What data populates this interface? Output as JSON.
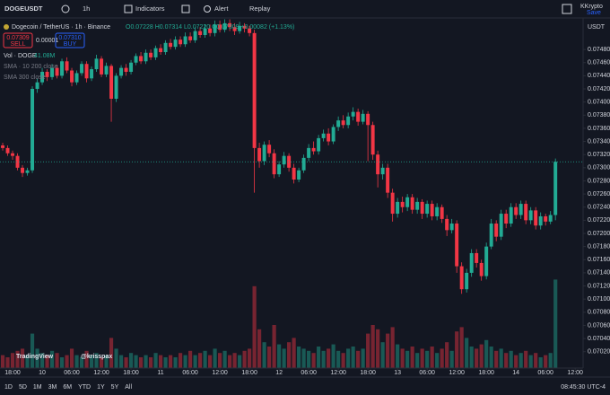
{
  "toolbar": {
    "symbol": "DOGEUSDT",
    "interval": "1h",
    "indicators": "Indicators",
    "alert": "Alert",
    "replay": "Replay",
    "user": "KKrypto",
    "save": "Save"
  },
  "legend": {
    "title": "Dogecoin / TetherUS · 1h · Binance",
    "ohlc": "O0.07228 H0.07314 L0.07220 C0.07309 +0.00082 (+1.13%)",
    "sell_price": "0.07309",
    "sell": "SELL",
    "spread": "0.00001",
    "buy_price": "0.07310",
    "buy": "BUY",
    "volume": "Vol · DOGE",
    "volume_value": "41.08M",
    "sma1": "SMA · 10 200 close",
    "sma2": "SMA 300 close"
  },
  "watermark": {
    "brand": "TradingView",
    "author": "@krisspax"
  },
  "bottom_bar": {
    "ranges": [
      "1D",
      "5D",
      "1M",
      "3M",
      "6M",
      "YTD",
      "1Y",
      "5Y",
      "All"
    ],
    "clock": "08:45:30 UTC-4"
  },
  "chart_data": {
    "type": "candlestick",
    "currency": "USDT",
    "up_color": "#22ab94",
    "down_color": "#f23645",
    "open": [
      0.07334,
      0.0733,
      0.07322,
      0.07318,
      0.073,
      0.07292,
      0.07296,
      0.0742,
      0.0743,
      0.07446,
      0.07438,
      0.07452,
      0.0744,
      0.07462,
      0.07448,
      0.0743,
      0.07444,
      0.07458,
      0.07436,
      0.0745,
      0.07466,
      0.07442,
      0.07455,
      0.07405,
      0.0744,
      0.07452,
      0.07446,
      0.0746,
      0.0747,
      0.07462,
      0.07475,
      0.07468,
      0.07482,
      0.07476,
      0.0749,
      0.07484,
      0.07495,
      0.07488,
      0.075,
      0.07494,
      0.07508,
      0.07502,
      0.07512,
      0.07505,
      0.07518,
      0.0751,
      0.0752,
      0.07514,
      0.07508,
      0.07516,
      0.07512,
      0.07505,
      0.0733,
      0.0731,
      0.07335,
      0.07322,
      0.0729,
      0.07305,
      0.07318,
      0.073,
      0.07282,
      0.07296,
      0.07315,
      0.0733,
      0.07325,
      0.07345,
      0.07352,
      0.0734,
      0.07362,
      0.07372,
      0.07365,
      0.07378,
      0.07385,
      0.0737,
      0.07382,
      0.07365,
      0.0732,
      0.0729,
      0.073,
      0.07262,
      0.0723,
      0.07248,
      0.0724,
      0.07255,
      0.07236,
      0.07248,
      0.0723,
      0.07245,
      0.07226,
      0.0724,
      0.07222,
      0.07205,
      0.07215,
      0.0715,
      0.07115,
      0.0714,
      0.0717,
      0.07155,
      0.07135,
      0.0718,
      0.07215,
      0.07195,
      0.0723,
      0.07215,
      0.0724,
      0.07228,
      0.07245,
      0.0722,
      0.07235,
      0.07212,
      0.07226,
      0.07218,
      0.07228
    ],
    "high": [
      0.07338,
      0.07334,
      0.07326,
      0.07322,
      0.07304,
      0.073,
      0.07424,
      0.07436,
      0.07452,
      0.0745,
      0.07458,
      0.07456,
      0.07466,
      0.07468,
      0.07452,
      0.07448,
      0.07462,
      0.07462,
      0.07454,
      0.07472,
      0.0747,
      0.0746,
      0.07458,
      0.07444,
      0.07456,
      0.07458,
      0.07464,
      0.07474,
      0.07476,
      0.0748,
      0.0748,
      0.07486,
      0.07488,
      0.07494,
      0.07496,
      0.075,
      0.075,
      0.07506,
      0.07506,
      0.07514,
      0.07514,
      0.07518,
      0.07518,
      0.07524,
      0.07524,
      0.07526,
      0.07526,
      0.0752,
      0.07522,
      0.0752,
      0.07516,
      0.0751,
      0.07338,
      0.0734,
      0.07342,
      0.07328,
      0.0731,
      0.07324,
      0.07322,
      0.07306,
      0.073,
      0.0732,
      0.07336,
      0.0734,
      0.0735,
      0.07358,
      0.0736,
      0.07366,
      0.07378,
      0.0738,
      0.07384,
      0.07392,
      0.0739,
      0.07388,
      0.07386,
      0.0737,
      0.07326,
      0.07306,
      0.07306,
      0.07268,
      0.07254,
      0.07256,
      0.0726,
      0.0726,
      0.07254,
      0.07252,
      0.0725,
      0.0725,
      0.07246,
      0.07244,
      0.07228,
      0.07222,
      0.0722,
      0.07156,
      0.07146,
      0.07176,
      0.07176,
      0.0716,
      0.07186,
      0.07222,
      0.0722,
      0.07236,
      0.07236,
      0.07246,
      0.07246,
      0.0725,
      0.0725,
      0.0724,
      0.0724,
      0.07232,
      0.0723,
      0.07234,
      0.07314
    ],
    "low": [
      0.07326,
      0.07318,
      0.07312,
      0.07296,
      0.07286,
      0.07288,
      0.07292,
      0.07414,
      0.07426,
      0.07432,
      0.07434,
      0.07436,
      0.07436,
      0.07444,
      0.07424,
      0.07426,
      0.0744,
      0.0743,
      0.07432,
      0.07446,
      0.07438,
      0.07438,
      0.0737,
      0.074,
      0.07436,
      0.0744,
      0.07442,
      0.07456,
      0.07458,
      0.07458,
      0.07464,
      0.07464,
      0.07472,
      0.07472,
      0.0748,
      0.0748,
      0.07484,
      0.07484,
      0.0749,
      0.0749,
      0.07498,
      0.07498,
      0.075,
      0.075,
      0.07506,
      0.07506,
      0.07508,
      0.07502,
      0.07504,
      0.07506,
      0.075,
      0.07262,
      0.073,
      0.07304,
      0.07316,
      0.07284,
      0.07286,
      0.073,
      0.07294,
      0.07276,
      0.07278,
      0.07292,
      0.0731,
      0.0732,
      0.0732,
      0.0734,
      0.07334,
      0.07336,
      0.07356,
      0.0736,
      0.0736,
      0.07372,
      0.07364,
      0.07366,
      0.0731,
      0.07312,
      0.0727,
      0.07282,
      0.07254,
      0.07218,
      0.07224,
      0.07232,
      0.07234,
      0.0723,
      0.0723,
      0.07222,
      0.07224,
      0.0722,
      0.0722,
      0.07216,
      0.07196,
      0.072,
      0.0714,
      0.07108,
      0.0711,
      0.07134,
      0.07148,
      0.07128,
      0.0713,
      0.07176,
      0.07188,
      0.0719,
      0.07208,
      0.0721,
      0.07222,
      0.07222,
      0.07214,
      0.07214,
      0.07206,
      0.07206,
      0.07212,
      0.07214,
      0.0722
    ],
    "close": [
      0.0733,
      0.07322,
      0.07318,
      0.073,
      0.07292,
      0.07296,
      0.0742,
      0.0743,
      0.07446,
      0.07438,
      0.07452,
      0.0744,
      0.07462,
      0.07448,
      0.0743,
      0.07444,
      0.07458,
      0.07436,
      0.0745,
      0.07466,
      0.07442,
      0.07455,
      0.07405,
      0.0744,
      0.07452,
      0.07446,
      0.0746,
      0.0747,
      0.07462,
      0.07475,
      0.07468,
      0.07482,
      0.07476,
      0.0749,
      0.07484,
      0.07495,
      0.07488,
      0.075,
      0.07494,
      0.07508,
      0.07502,
      0.07512,
      0.07505,
      0.07518,
      0.0751,
      0.0752,
      0.07514,
      0.07508,
      0.07516,
      0.07512,
      0.07505,
      0.0733,
      0.0731,
      0.07335,
      0.07322,
      0.0729,
      0.07305,
      0.07318,
      0.073,
      0.07282,
      0.07296,
      0.07315,
      0.0733,
      0.07325,
      0.07345,
      0.07352,
      0.0734,
      0.07362,
      0.07372,
      0.07365,
      0.07378,
      0.07385,
      0.0737,
      0.07382,
      0.07365,
      0.0732,
      0.0729,
      0.073,
      0.07262,
      0.0723,
      0.07248,
      0.0724,
      0.07255,
      0.07236,
      0.07248,
      0.0723,
      0.07245,
      0.07226,
      0.0724,
      0.07222,
      0.07205,
      0.07215,
      0.0715,
      0.07115,
      0.0714,
      0.0717,
      0.07155,
      0.07135,
      0.0718,
      0.07215,
      0.07195,
      0.0723,
      0.07215,
      0.0724,
      0.07228,
      0.07245,
      0.0722,
      0.07235,
      0.07212,
      0.07226,
      0.07218,
      0.07228,
      0.07309
    ],
    "volume": [
      6,
      5,
      7,
      8,
      9,
      6,
      16,
      9,
      7,
      6,
      8,
      7,
      5,
      6,
      9,
      6,
      5,
      8,
      6,
      7,
      5,
      6,
      14,
      9,
      6,
      5,
      7,
      6,
      5,
      6,
      5,
      7,
      6,
      5,
      6,
      5,
      7,
      6,
      8,
      6,
      7,
      8,
      6,
      9,
      7,
      8,
      6,
      7,
      6,
      8,
      9,
      38,
      18,
      12,
      10,
      20,
      11,
      9,
      12,
      14,
      10,
      9,
      8,
      7,
      10,
      8,
      9,
      11,
      8,
      7,
      9,
      10,
      8,
      9,
      16,
      20,
      18,
      12,
      16,
      19,
      11,
      9,
      8,
      10,
      7,
      9,
      8,
      10,
      7,
      9,
      12,
      8,
      17,
      19,
      14,
      10,
      9,
      11,
      13,
      10,
      8,
      9,
      7,
      8,
      6,
      7,
      8,
      6,
      7,
      5,
      6,
      7,
      41.08
    ],
    "vlim": [
      0,
      100
    ],
    "ylim": [
      0.06995,
      0.07528
    ],
    "yticks": [
      {
        "value": 0.0702,
        "label": "0.07020"
      },
      {
        "value": 0.0704,
        "label": "0.07040"
      },
      {
        "value": 0.0706,
        "label": "0.07060"
      },
      {
        "value": 0.0708,
        "label": "0.07080"
      },
      {
        "value": 0.071,
        "label": "0.07100"
      },
      {
        "value": 0.0712,
        "label": "0.07120"
      },
      {
        "value": 0.0714,
        "label": "0.07140"
      },
      {
        "value": 0.0716,
        "label": "0.07160"
      },
      {
        "value": 0.0718,
        "label": "0.07180"
      },
      {
        "value": 0.072,
        "label": "0.07200"
      },
      {
        "value": 0.0722,
        "label": "0.07220"
      },
      {
        "value": 0.0724,
        "label": "0.07240"
      },
      {
        "value": 0.0726,
        "label": "0.07260"
      },
      {
        "value": 0.0728,
        "label": "0.07280"
      },
      {
        "value": 0.073,
        "label": "0.07300"
      },
      {
        "value": 0.0732,
        "label": "0.07320"
      },
      {
        "value": 0.0734,
        "label": "0.07340"
      },
      {
        "value": 0.0736,
        "label": "0.07360"
      },
      {
        "value": 0.0738,
        "label": "0.07380"
      },
      {
        "value": 0.074,
        "label": "0.07400"
      },
      {
        "value": 0.0742,
        "label": "0.07420"
      },
      {
        "value": 0.0744,
        "label": "0.07440"
      },
      {
        "value": 0.0746,
        "label": "0.07460"
      },
      {
        "value": 0.0748,
        "label": "0.07480"
      }
    ],
    "xlim": [
      -0.55,
      117.6
    ],
    "xticks": [
      {
        "value": 2,
        "label": "18:00"
      },
      {
        "value": 8,
        "label": "10"
      },
      {
        "value": 14,
        "label": "06:00"
      },
      {
        "value": 20,
        "label": "12:00"
      },
      {
        "value": 26,
        "label": "18:00"
      },
      {
        "value": 32,
        "label": "11"
      },
      {
        "value": 38,
        "label": "06:00"
      },
      {
        "value": 44,
        "label": "12:00"
      },
      {
        "value": 50,
        "label": "18:00"
      },
      {
        "value": 56,
        "label": "12"
      },
      {
        "value": 62,
        "label": "06:00"
      },
      {
        "value": 68,
        "label": "12:00"
      },
      {
        "value": 74,
        "label": "18:00"
      },
      {
        "value": 80,
        "label": "13"
      },
      {
        "value": 86,
        "label": "06:00"
      },
      {
        "value": 92,
        "label": "12:00"
      },
      {
        "value": 98,
        "label": "18:00"
      },
      {
        "value": 104,
        "label": "14"
      },
      {
        "value": 110,
        "label": "06:00"
      },
      {
        "value": 116,
        "label": "12:00"
      }
    ],
    "grid": false
  }
}
